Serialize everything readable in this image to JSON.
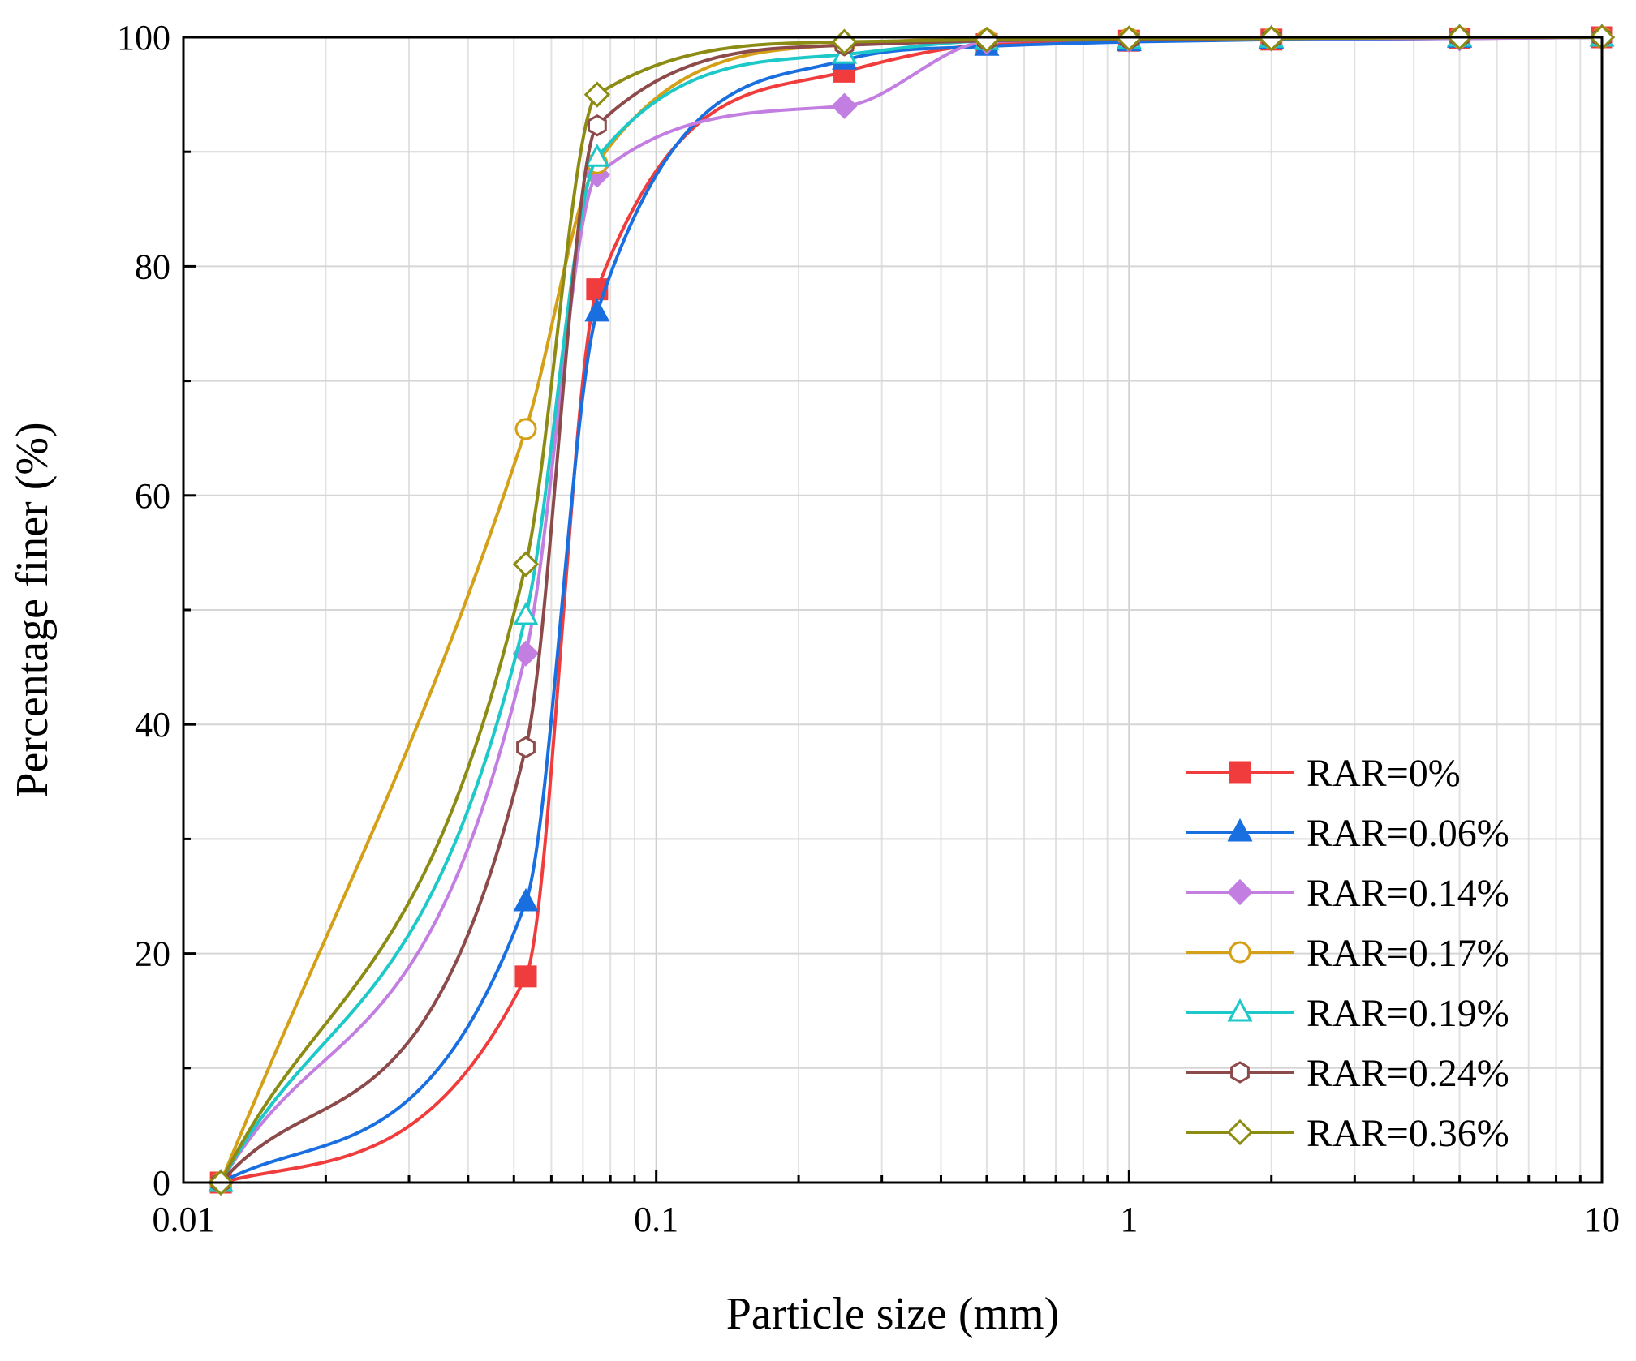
{
  "chart_data": {
    "type": "line",
    "title": "",
    "xlabel": "Particle size (mm)",
    "ylabel": "Percentage finer (%)",
    "xscale": "log",
    "xlim": [
      0.01,
      10
    ],
    "ylim": [
      0,
      100
    ],
    "xticks": [
      0.01,
      0.1,
      1,
      10
    ],
    "xtick_labels": [
      "0.01",
      "0.1",
      "1",
      "10"
    ],
    "yticks": [
      0,
      20,
      40,
      60,
      80,
      100
    ],
    "ytick_labels": [
      "0",
      "20",
      "40",
      "60",
      "80",
      "100"
    ],
    "grid": true,
    "legend_position": "bottom-right",
    "series": [
      {
        "name": "RAR=0%",
        "color": "#f03c3c",
        "marker": "square-filled",
        "x": [
          0.012,
          0.053,
          0.075,
          0.25,
          0.5,
          1,
          2,
          5,
          10
        ],
        "y": [
          0,
          18,
          78,
          97,
          99.4,
          99.7,
          99.8,
          99.9,
          100
        ]
      },
      {
        "name": "RAR=0.06%",
        "color": "#1a6fe0",
        "marker": "triangle-filled",
        "x": [
          0.012,
          0.053,
          0.075,
          0.25,
          0.5,
          1,
          2,
          5,
          10
        ],
        "y": [
          0,
          24.5,
          76,
          98,
          99.2,
          99.6,
          99.8,
          99.9,
          100
        ]
      },
      {
        "name": "RAR=0.14%",
        "color": "#c27ee0",
        "marker": "diamond-filled",
        "x": [
          0.012,
          0.053,
          0.075,
          0.25,
          0.5,
          1,
          2,
          5,
          10
        ],
        "y": [
          0,
          46.2,
          88,
          94,
          99.6,
          99.8,
          99.9,
          99.9,
          100
        ]
      },
      {
        "name": "RAR=0.17%",
        "color": "#d4a017",
        "marker": "circle-open",
        "x": [
          0.012,
          0.053,
          0.075,
          0.25,
          0.5,
          1,
          2,
          5,
          10
        ],
        "y": [
          0,
          65.8,
          89,
          99.4,
          99.8,
          99.9,
          99.9,
          100,
          100
        ]
      },
      {
        "name": "RAR=0.19%",
        "color": "#1cc8c8",
        "marker": "triangle-open",
        "x": [
          0.012,
          0.053,
          0.075,
          0.25,
          0.5,
          1,
          2,
          5,
          10
        ],
        "y": [
          0,
          49.5,
          89.5,
          98.5,
          99.7,
          99.8,
          99.9,
          100,
          100
        ]
      },
      {
        "name": "RAR=0.24%",
        "color": "#8c4a4a",
        "marker": "hexagon-open",
        "x": [
          0.012,
          0.053,
          0.075,
          0.25,
          0.5,
          1,
          2,
          5,
          10
        ],
        "y": [
          0,
          38,
          92.3,
          99.3,
          99.7,
          99.8,
          99.9,
          100,
          100
        ]
      },
      {
        "name": "RAR=0.36%",
        "color": "#8c8c14",
        "marker": "diamond-open",
        "x": [
          0.012,
          0.053,
          0.075,
          0.25,
          0.5,
          1,
          2,
          5,
          10
        ],
        "y": [
          0,
          54,
          95,
          99.6,
          99.8,
          99.9,
          99.9,
          100,
          100
        ]
      }
    ]
  }
}
